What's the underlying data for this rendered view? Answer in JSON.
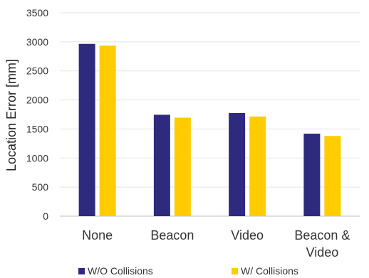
{
  "chart_data": {
    "type": "bar",
    "title": "",
    "xlabel": "",
    "ylabel": "Location Error [mm]",
    "ylim": [
      0,
      3500
    ],
    "yticks": [
      0,
      500,
      1000,
      1500,
      2000,
      2500,
      3000,
      3500
    ],
    "categories": [
      [
        "None"
      ],
      [
        "Beacon"
      ],
      [
        "Video"
      ],
      [
        "Beacon &",
        "Video"
      ]
    ],
    "series": [
      {
        "name": "W/O Collisions",
        "color": "#2e2a7e",
        "values": [
          2965,
          1745,
          1775,
          1420
        ]
      },
      {
        "name": "W/ Collisions",
        "color": "#ffcc00",
        "values": [
          2935,
          1695,
          1715,
          1380
        ]
      }
    ],
    "grid": true,
    "legend": "bottom"
  }
}
